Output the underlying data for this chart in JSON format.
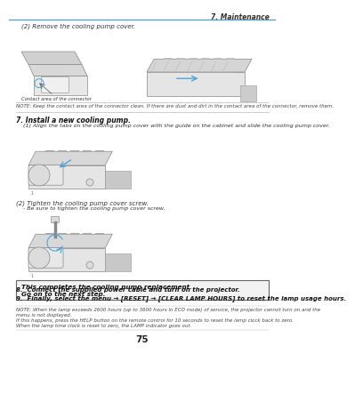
{
  "page_num": "75",
  "header_text": "7. Maintenance",
  "header_line_color": "#5ba3c9",
  "bg_color": "#ffffff",
  "section_remove_title": "(2) Remove the cooling pump cover.",
  "note_connector": "NOTE: Keep the contact area of the connector clean. If there are dust and dirt in the contact area of the connector, remove them.",
  "section7_title": "7. Install a new cooling pump.",
  "section7_step1": "(1) Align the tabs on the cooling pump cover with the guide on the cabinet and slide the cooling pump cover.",
  "section7_step2": "(2) Tighten the cooling pump cover screw.",
  "section7_step2_sub": "- Be sure to tighten the cooling pump cover screw.",
  "box_line1": "This completes the cooling pump replacement.",
  "box_line2": "Go on to the next step.",
  "step8": "8.  Connect the supplied power cable and turn on the projector.",
  "step9": "9.  Finally, select the menu → [RESET] → [CLEAR LAMP HOURS] to reset the lamp usage hours.",
  "note_final_line1": "NOTE: When the lamp exceeds 2600 hours (up to 3600 hours in ECO mode) of service, the projector cannot turn on and the",
  "note_final_line2": "menu is not displayed.",
  "note_final_line3": "If this happens, press the HELP button on the remote control for 10 seconds to reset the lamp clock back to zero.",
  "note_final_line4": "When the lamp time clock is reset to zero, the LAMP indicator goes out.",
  "contact_label": "Contact area of the connector",
  "box_border_color": "#666666",
  "text_color": "#333333",
  "note_italic_color": "#444444"
}
